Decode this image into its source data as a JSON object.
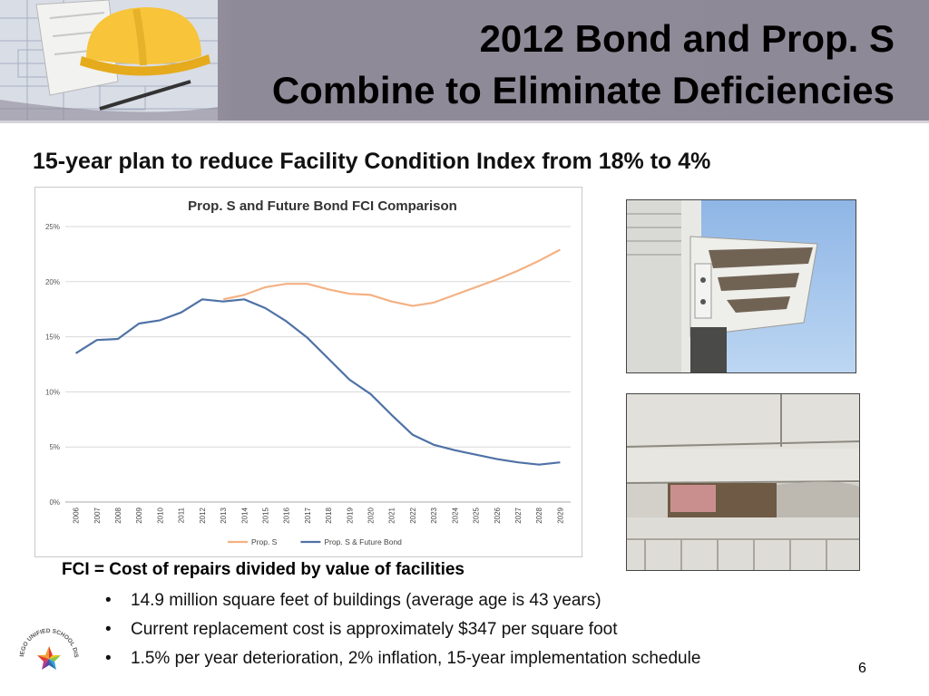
{
  "title": {
    "line1": "2012 Bond and Prop. S",
    "line2": "Combine to Eliminate Deficiencies"
  },
  "subtitle": "15-year plan to reduce Facility Condition Index from 18% to 4%",
  "fci_definition": "FCI = Cost of repairs divided by value of facilities",
  "bullets": [
    "14.9 million square feet of buildings (average age is 43 years)",
    "Current replacement cost is approximately $347 per square foot",
    "1.5% per year deterioration, 2% inflation, 15-year implementation schedule"
  ],
  "bullet_glyph": "•",
  "page_number": "6",
  "logo_text": "SAN DIEGO UNIFIED SCHOOL DISTRICT",
  "icons": {
    "header": "hardhat-blueprint-image",
    "logo": "district-star-logo"
  },
  "chart_data": {
    "type": "line",
    "title": "Prop. S and Future Bond FCI Comparison",
    "x": [
      "2006",
      "2007",
      "2008",
      "2009",
      "2010",
      "2011",
      "2012",
      "2013",
      "2014",
      "2015",
      "2016",
      "2017",
      "2018",
      "2019",
      "2020",
      "2021",
      "2022",
      "2023",
      "2024",
      "2025",
      "2026",
      "2027",
      "2028",
      "2029"
    ],
    "y_ticks": [
      "0%",
      "5%",
      "10%",
      "15%",
      "20%",
      "25%"
    ],
    "ylim": [
      0,
      25
    ],
    "grid": true,
    "legend_position": "bottom",
    "series": [
      {
        "name": "Prop. S",
        "color": "#f4b183",
        "x": [
          "2013",
          "2014",
          "2015",
          "2016",
          "2017",
          "2018",
          "2019",
          "2020",
          "2021",
          "2022",
          "2023",
          "2024",
          "2025",
          "2026",
          "2027",
          "2028",
          "2029"
        ],
        "values": [
          18.4,
          18.8,
          19.5,
          19.8,
          19.8,
          19.3,
          18.9,
          18.8,
          18.2,
          17.8,
          18.1,
          18.8,
          19.5,
          20.2,
          21.0,
          21.9,
          22.9
        ]
      },
      {
        "name": "Prop. S & Future Bond",
        "color": "#4f72a6",
        "x": [
          "2006",
          "2007",
          "2008",
          "2009",
          "2010",
          "2011",
          "2012",
          "2013",
          "2014",
          "2015",
          "2016",
          "2017",
          "2018",
          "2019",
          "2020",
          "2021",
          "2022",
          "2023",
          "2024",
          "2025",
          "2026",
          "2027",
          "2028",
          "2029"
        ],
        "values": [
          13.5,
          14.7,
          14.8,
          16.2,
          16.5,
          17.2,
          18.4,
          18.2,
          18.4,
          17.6,
          16.4,
          14.9,
          13.0,
          11.1,
          9.8,
          7.9,
          6.1,
          5.2,
          4.7,
          4.3,
          3.9,
          3.6,
          3.4,
          3.6
        ]
      }
    ]
  }
}
